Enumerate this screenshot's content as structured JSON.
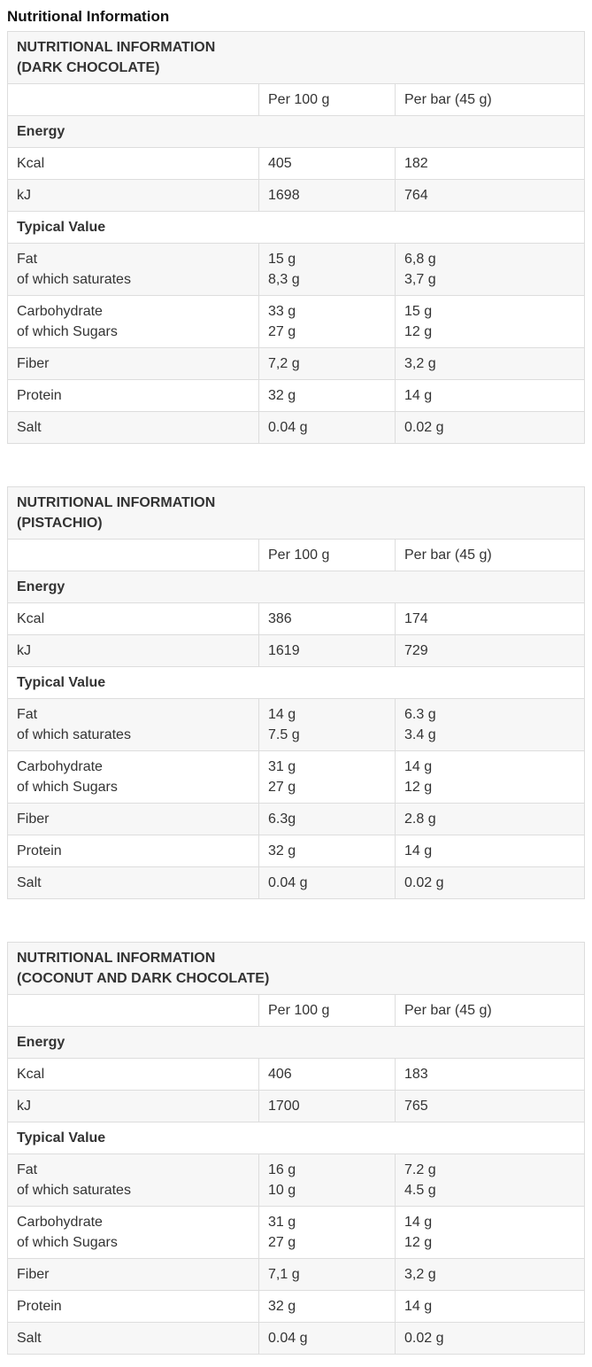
{
  "page_title": "Nutritional Information",
  "tables": [
    {
      "id": "dark-chocolate",
      "header": [
        "NUTRITIONAL INFORMATION",
        "(DARK CHOCOLATE)"
      ],
      "columns": {
        "per100": "Per 100 g",
        "perbar": "Per bar (45 g)"
      },
      "rows": [
        {
          "type": "section",
          "label": "Energy"
        },
        {
          "type": "data",
          "label": [
            "Kcal"
          ],
          "per100": [
            "405"
          ],
          "perbar": [
            "182"
          ]
        },
        {
          "type": "data",
          "label": [
            "kJ"
          ],
          "per100": [
            "1698"
          ],
          "perbar": [
            "764"
          ]
        },
        {
          "type": "section",
          "label": "Typical Value"
        },
        {
          "type": "data",
          "label": [
            "Fat",
            "of which saturates"
          ],
          "per100": [
            "15 g",
            "8,3 g"
          ],
          "perbar": [
            "6,8 g",
            "3,7 g"
          ]
        },
        {
          "type": "data",
          "label": [
            "Carbohydrate",
            "of which Sugars"
          ],
          "per100": [
            "33 g",
            "27 g"
          ],
          "perbar": [
            "15 g",
            "12 g"
          ]
        },
        {
          "type": "data",
          "label": [
            "Fiber"
          ],
          "per100": [
            "7,2 g"
          ],
          "perbar": [
            "3,2 g"
          ]
        },
        {
          "type": "data",
          "label": [
            "Protein"
          ],
          "per100": [
            "32 g"
          ],
          "perbar": [
            "14 g"
          ]
        },
        {
          "type": "data",
          "label": [
            "Salt"
          ],
          "per100": [
            "0.04 g"
          ],
          "perbar": [
            "0.02 g"
          ]
        }
      ]
    },
    {
      "id": "pistachio",
      "header": [
        "NUTRITIONAL INFORMATION",
        "(PISTACHIO)"
      ],
      "columns": {
        "per100": "Per 100 g",
        "perbar": "Per bar (45 g)"
      },
      "rows": [
        {
          "type": "section",
          "label": "Energy"
        },
        {
          "type": "data",
          "label": [
            "Kcal"
          ],
          "per100": [
            "386"
          ],
          "perbar": [
            "174"
          ]
        },
        {
          "type": "data",
          "label": [
            "kJ"
          ],
          "per100": [
            "1619"
          ],
          "perbar": [
            "729"
          ]
        },
        {
          "type": "section",
          "label": "Typical Value"
        },
        {
          "type": "data",
          "label": [
            "Fat",
            "of which saturates"
          ],
          "per100": [
            "14 g",
            "7.5 g"
          ],
          "perbar": [
            "6.3 g",
            "3.4 g"
          ]
        },
        {
          "type": "data",
          "label": [
            "Carbohydrate",
            "of which Sugars"
          ],
          "per100": [
            "31 g",
            "27 g"
          ],
          "perbar": [
            "14 g",
            "12 g"
          ]
        },
        {
          "type": "data",
          "label": [
            "Fiber"
          ],
          "per100": [
            "6.3g"
          ],
          "perbar": [
            "2.8 g"
          ]
        },
        {
          "type": "data",
          "label": [
            "Protein"
          ],
          "per100": [
            "32 g"
          ],
          "perbar": [
            "14 g"
          ]
        },
        {
          "type": "data",
          "label": [
            "Salt"
          ],
          "per100": [
            "0.04 g"
          ],
          "perbar": [
            "0.02 g"
          ]
        }
      ]
    },
    {
      "id": "coconut-dark-chocolate",
      "header": [
        "NUTRITIONAL INFORMATION",
        "(COCONUT AND DARK CHOCOLATE)"
      ],
      "columns": {
        "per100": "Per 100 g",
        "perbar": "Per bar (45 g)"
      },
      "rows": [
        {
          "type": "section",
          "label": "Energy"
        },
        {
          "type": "data",
          "label": [
            "Kcal"
          ],
          "per100": [
            "406"
          ],
          "perbar": [
            "183"
          ]
        },
        {
          "type": "data",
          "label": [
            "kJ"
          ],
          "per100": [
            "1700"
          ],
          "perbar": [
            "765"
          ]
        },
        {
          "type": "section",
          "label": "Typical Value"
        },
        {
          "type": "data",
          "label": [
            "Fat",
            "of which saturates"
          ],
          "per100": [
            "16 g",
            "10 g"
          ],
          "perbar": [
            "7.2 g",
            "4.5 g"
          ]
        },
        {
          "type": "data",
          "label": [
            "Carbohydrate",
            "of which Sugars"
          ],
          "per100": [
            "31 g",
            "27 g"
          ],
          "perbar": [
            "14 g",
            "12 g"
          ]
        },
        {
          "type": "data",
          "label": [
            "Fiber"
          ],
          "per100": [
            "7,1 g"
          ],
          "perbar": [
            "3,2 g"
          ]
        },
        {
          "type": "data",
          "label": [
            "Protein"
          ],
          "per100": [
            "32 g"
          ],
          "perbar": [
            "14 g"
          ]
        },
        {
          "type": "data",
          "label": [
            "Salt"
          ],
          "per100": [
            "0.04 g"
          ],
          "perbar": [
            "0.02 g"
          ]
        }
      ]
    }
  ]
}
